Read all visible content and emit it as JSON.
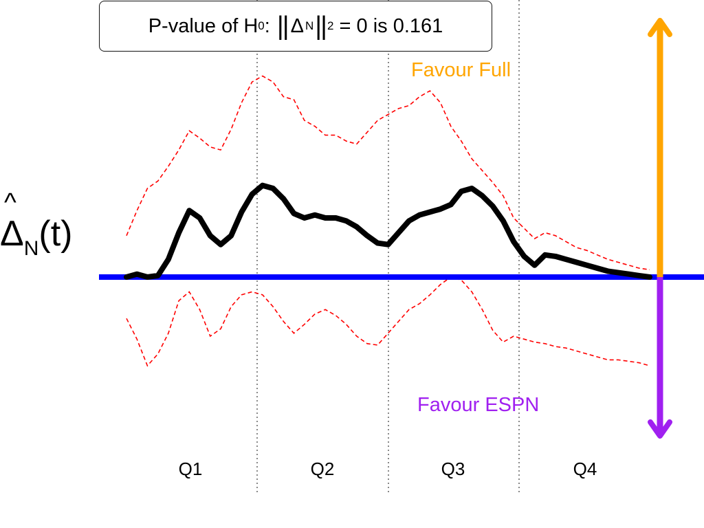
{
  "chart_data": {
    "type": "line",
    "annotation": {
      "prefix": "P-value of H",
      "h_sub": "0",
      "colon": ":",
      "norm_open": "||",
      "delta": "Δ",
      "delta_sub": "N",
      "norm_close": "||",
      "sup": "2",
      "suffix": "= 0 is 0.161"
    },
    "ylabel": {
      "symbol": "Δ",
      "sub": "N",
      "arg": "(t)"
    },
    "upper_label": "Favour Full",
    "lower_label": "Favour ESPN",
    "quarters": [
      "Q1",
      "Q2",
      "Q3",
      "Q4"
    ],
    "colors": {
      "estimate": "#000000",
      "bounds": "#ff0000",
      "baseline": "#0000ff",
      "favour_full": "#ffa500",
      "favour_espn": "#a020f0",
      "dividers": "#888888"
    },
    "x": [
      0,
      0.02,
      0.04,
      0.06,
      0.08,
      0.1,
      0.12,
      0.14,
      0.16,
      0.18,
      0.2,
      0.22,
      0.24,
      0.26,
      0.28,
      0.3,
      0.32,
      0.34,
      0.36,
      0.38,
      0.4,
      0.42,
      0.44,
      0.46,
      0.48,
      0.5,
      0.52,
      0.54,
      0.56,
      0.58,
      0.6,
      0.62,
      0.64,
      0.66,
      0.68,
      0.7,
      0.72,
      0.74,
      0.76,
      0.78,
      0.8,
      0.82,
      0.84,
      0.86,
      0.88,
      0.9,
      0.92,
      0.94,
      0.96,
      0.98,
      1.0
    ],
    "series": [
      {
        "values": [
          0,
          0.02,
          0,
          0.01,
          0.12,
          0.3,
          0.45,
          0.4,
          0.28,
          0.22,
          0.28,
          0.44,
          0.56,
          0.62,
          0.6,
          0.53,
          0.43,
          0.4,
          0.42,
          0.4,
          0.4,
          0.38,
          0.34,
          0.28,
          0.23,
          0.22,
          0.3,
          0.38,
          0.42,
          0.44,
          0.46,
          0.49,
          0.58,
          0.6,
          0.55,
          0.48,
          0.38,
          0.24,
          0.14,
          0.08,
          0.15,
          0.14,
          0.12,
          0.1,
          0.08,
          0.06,
          0.04,
          0.03,
          0.02,
          0.01,
          0.0
        ]
      },
      {
        "values": [
          0.28,
          0.45,
          0.6,
          0.65,
          0.75,
          0.86,
          0.99,
          0.94,
          0.88,
          0.86,
          1.0,
          1.18,
          1.32,
          1.36,
          1.32,
          1.22,
          1.2,
          1.06,
          1.02,
          0.96,
          0.96,
          0.92,
          0.9,
          0.98,
          1.06,
          1.1,
          1.14,
          1.16,
          1.22,
          1.26,
          1.18,
          1.02,
          0.92,
          0.8,
          0.72,
          0.64,
          0.55,
          0.4,
          0.33,
          0.26,
          0.3,
          0.28,
          0.24,
          0.2,
          0.18,
          0.15,
          0.12,
          0.1,
          0.08,
          0.06,
          0.05
        ]
      },
      {
        "values": [
          -0.28,
          -0.42,
          -0.6,
          -0.52,
          -0.38,
          -0.16,
          -0.1,
          -0.22,
          -0.4,
          -0.35,
          -0.2,
          -0.12,
          -0.1,
          -0.12,
          -0.2,
          -0.3,
          -0.38,
          -0.32,
          -0.25,
          -0.22,
          -0.26,
          -0.32,
          -0.4,
          -0.45,
          -0.46,
          -0.38,
          -0.3,
          -0.22,
          -0.18,
          -0.12,
          -0.05,
          0.0,
          -0.02,
          -0.1,
          -0.22,
          -0.36,
          -0.44,
          -0.4,
          -0.42,
          -0.44,
          -0.45,
          -0.47,
          -0.48,
          -0.5,
          -0.52,
          -0.54,
          -0.56,
          -0.56,
          -0.57,
          -0.58,
          -0.6
        ]
      }
    ]
  }
}
